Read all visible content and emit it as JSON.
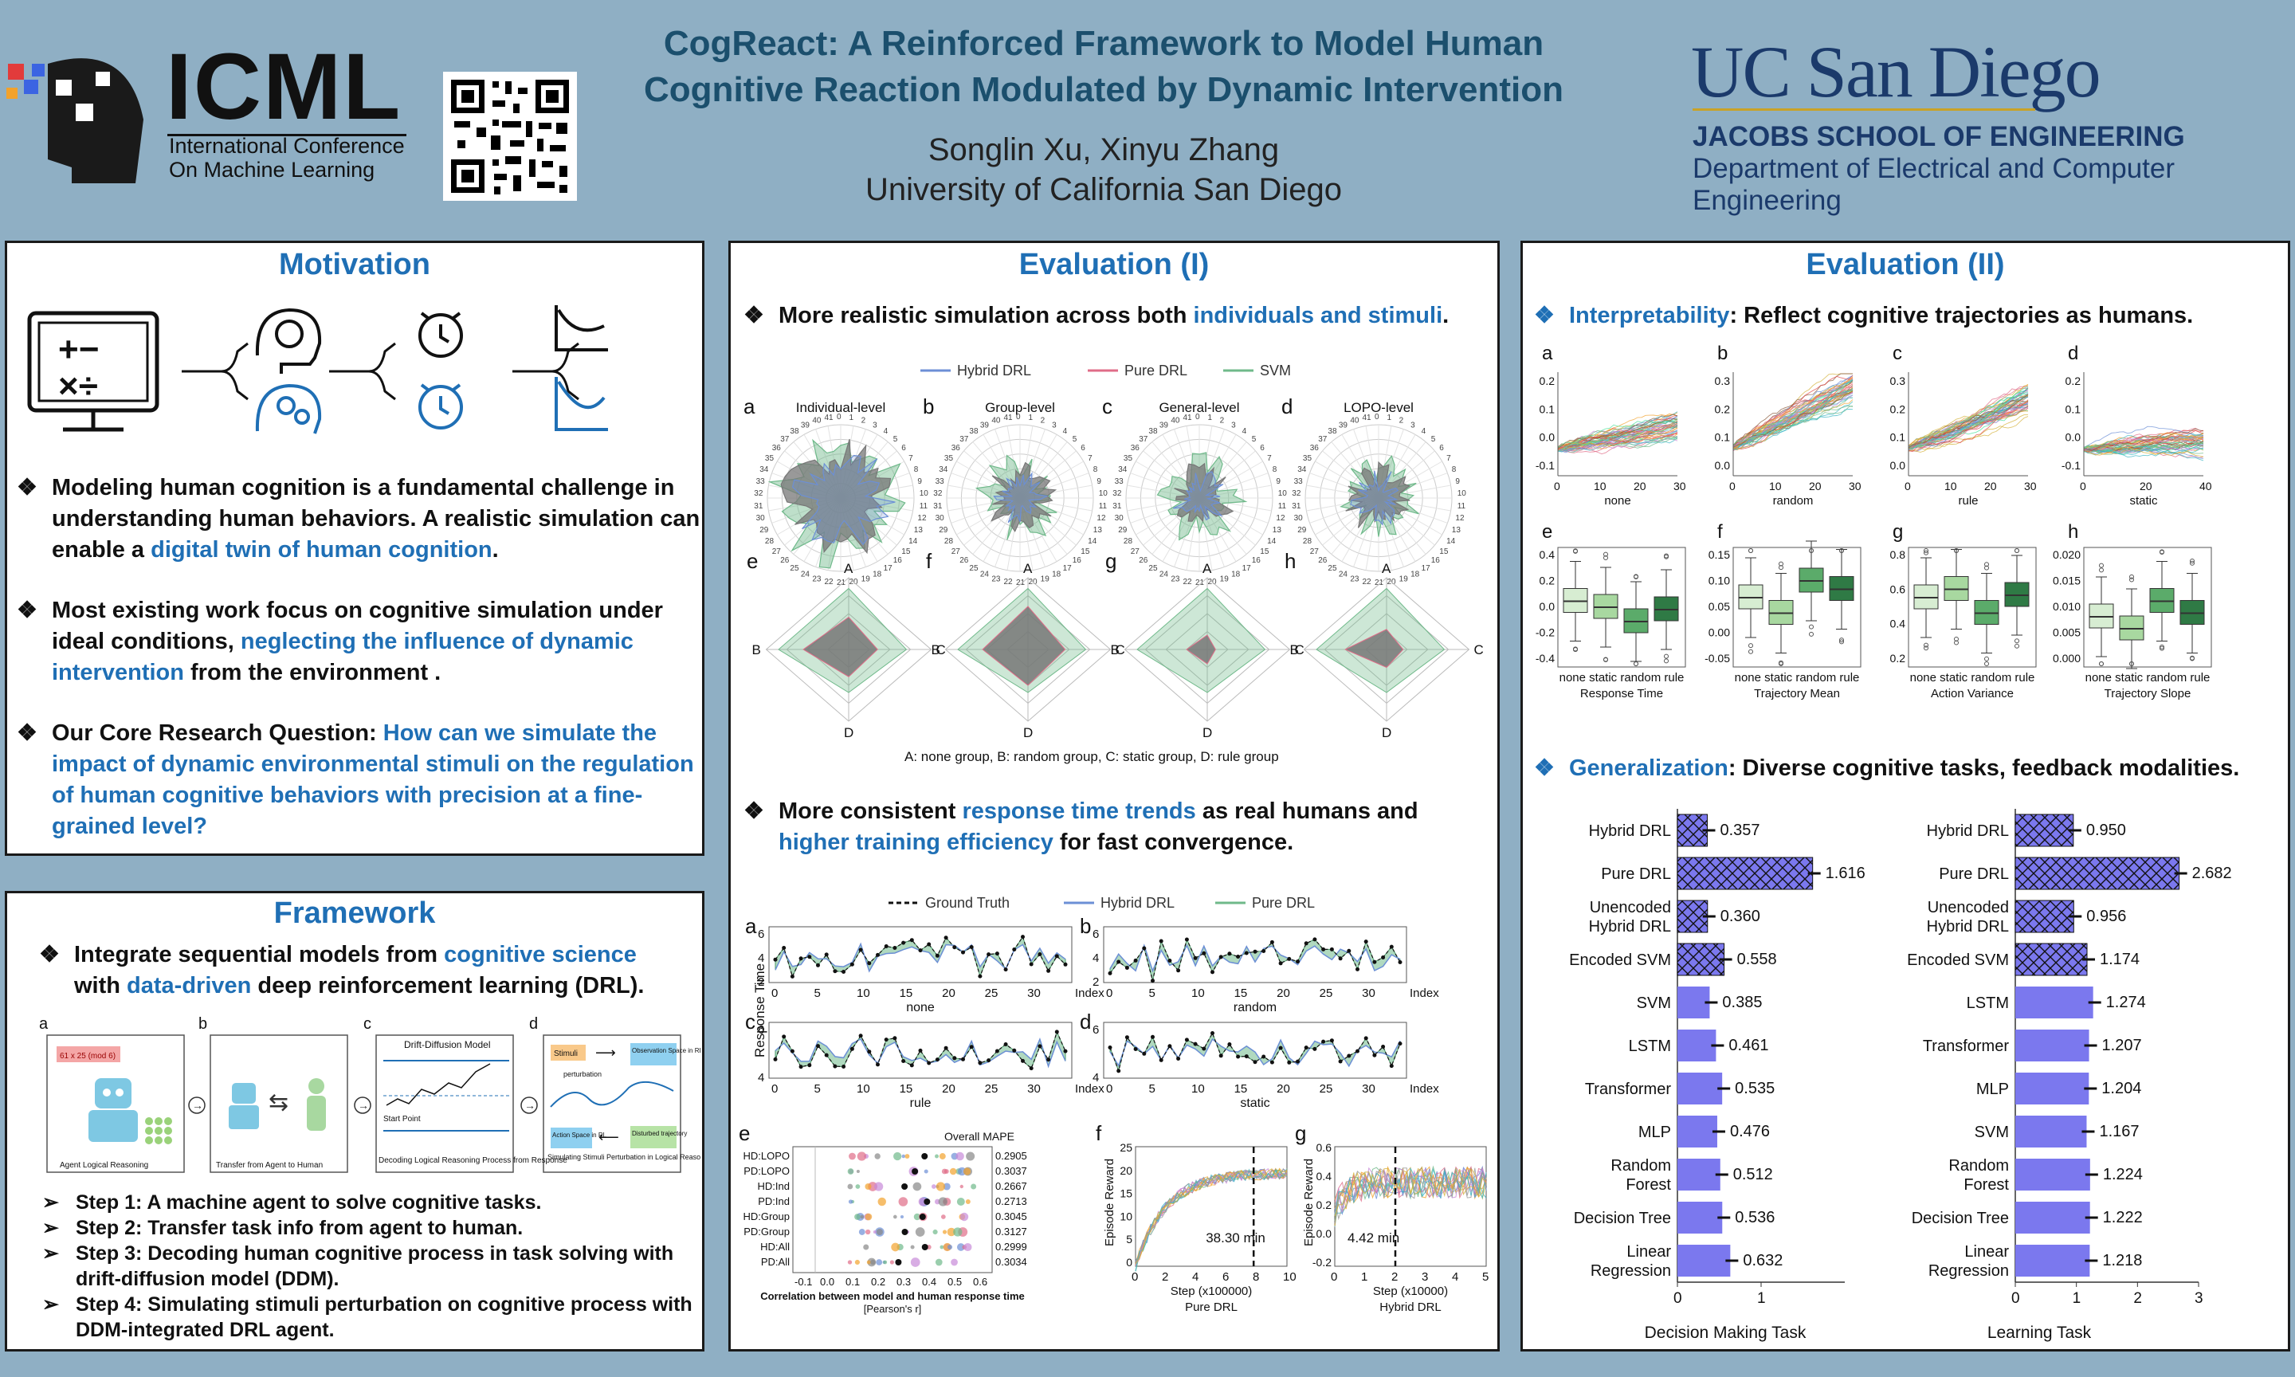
{
  "header": {
    "icml_logo": "ICML",
    "icml_sub1": "International Conference",
    "icml_sub2": "On Machine Learning",
    "title_line1": "CogReact: A Reinforced Framework to Model Human",
    "title_line2": "Cognitive Reaction Modulated by Dynamic Intervention",
    "authors": "Songlin Xu, Xinyu Zhang",
    "affiliation": "University of California San Diego",
    "ucsd_logo": "UC San Diego",
    "school": "JACOBS SCHOOL OF ENGINEERING",
    "department": "Department of Electrical and Computer Engineering"
  },
  "motivation": {
    "title": "Motivation",
    "b1_a": "Modeling human cognition is a fundamental challenge in understanding human behaviors. A realistic simulation can enable a ",
    "b1_hl": "digital twin of human cognition",
    "b1_c": ".",
    "b2_a": "Most existing work focus on cognitive simulation under ideal conditions, ",
    "b2_hl": "neglecting the influence of dynamic intervention",
    "b2_c": " from the environment .",
    "b3_a": "Our Core Research Question: ",
    "b3_hl": "How can we simulate the impact of dynamic environmental stimuli on the regulation of human cognitive behaviors with precision at a fine-grained level?"
  },
  "framework": {
    "title": "Framework",
    "intro_a": "Integrate sequential models from ",
    "intro_hl1": "cognitive science",
    "intro_b": "with ",
    "intro_hl2": "data-driven",
    "intro_c": " deep reinforcement learning (DRL).",
    "panel_labels": [
      "a",
      "b",
      "c",
      "d"
    ],
    "panel_caps": [
      "Agent Logical Reasoning",
      "Transfer from Agent to Human",
      "Decoding Logical Reasoning Process from Response",
      "Simulating Stimuli Perturbation in Logical Reasoning Process"
    ],
    "ddm_title": "Drift-Diffusion Model",
    "equation": "61 x 25 (mod 6)",
    "start_point": "Start Point",
    "stimuli": "Stimuli",
    "obs_space": "Observation Space in RL",
    "action_space": "Action Space in RL",
    "disturbed": "Disturbed trajectory",
    "perturbation": "perturbation",
    "steps": [
      "Step 1: A machine agent to solve cognitive tasks.",
      "Step 2: Transfer task info from agent to human.",
      "Step 3: Decoding human cognitive process in task solving with drift-diffusion model (DDM).",
      "Step 4: Simulating stimuli perturbation on cognitive process with DDM-integrated DRL agent."
    ]
  },
  "eval1": {
    "title": "Evaluation (I)",
    "h1_a": "More realistic simulation across both ",
    "h1_hl": "individuals and stimuli",
    "h1_c": ".",
    "legend": [
      "Hybrid DRL",
      "Pure DRL",
      "SVM"
    ],
    "radar_titles": [
      "Individual-level",
      "Group-level",
      "General-level",
      "LOPO-level"
    ],
    "radar_letters": [
      "a",
      "b",
      "c",
      "d"
    ],
    "diamond_letters": [
      "e",
      "f",
      "g",
      "h"
    ],
    "axis_caption": "A: none group, B: random group, C: static group, D: rule group",
    "h2_a": "More consistent ",
    "h2_hl1": "response time trends",
    "h2_b": " as real humans and",
    "h2_hl2": "higher training efficiency",
    "h2_c": " for fast convergence.",
    "legend2": [
      "Ground Truth",
      "Hybrid DRL",
      "Pure DRL"
    ],
    "rt_panels": [
      "none",
      "random",
      "rule",
      "static"
    ],
    "rt_ylabel": "Response Time",
    "index_label": "Index",
    "mape_title": "Overall MAPE",
    "mape_rows": [
      {
        "name": "HD:LOPO",
        "val": "0.2905"
      },
      {
        "name": "PD:LOPO",
        "val": "0.3037"
      },
      {
        "name": "HD:Ind",
        "val": "0.2667"
      },
      {
        "name": "PD:Ind",
        "val": "0.2713"
      },
      {
        "name": "HD:Group",
        "val": "0.3045"
      },
      {
        "name": "PD:Group",
        "val": "0.3127"
      },
      {
        "name": "HD:All",
        "val": "0.2999"
      },
      {
        "name": "PD:All",
        "val": "0.3034"
      }
    ],
    "corr_xlabel1": "Correlation between model and human response time",
    "corr_xlabel2": "[Pearson's r]",
    "reward_ylabel": "Episode Reward",
    "pure_time": "38.30 min",
    "pure_xlabel": "Step (x100000)",
    "pure_name": "Pure DRL",
    "hybrid_time": "4.42 min",
    "hybrid_xlabel": "Step (x10000)",
    "hybrid_name": "Hybrid DRL"
  },
  "eval2": {
    "title": "Evaluation (II)",
    "h1_hl": "Interpretability",
    "h1_rest": ": Reflect cognitive trajectories as humans.",
    "traj_letters": [
      "a",
      "b",
      "c",
      "d"
    ],
    "traj_names": [
      "none",
      "random",
      "rule",
      "static"
    ],
    "box_letters": [
      "e",
      "f",
      "g",
      "h"
    ],
    "box_titles": [
      "Response Time",
      "Trajectory Mean",
      "Action Variance",
      "Trajectory Slope"
    ],
    "box_cats": "none static random rule",
    "h2_hl": "Generalization",
    "h2_rest": ": Diverse cognitive tasks, feedback modalities.",
    "bar_models": [
      "Hybrid DRL",
      "Pure DRL",
      "Unencoded Hybrid DRL",
      "Encoded SVM",
      "SVM",
      "LSTM",
      "Transformer",
      "MLP",
      "Random Forest",
      "Decision Tree",
      "Linear Regression"
    ],
    "bar_models_right": [
      "Hybrid DRL",
      "Pure DRL",
      "Unencoded Hybrid DRL",
      "Encoded SVM",
      "LSTM",
      "Transformer",
      "MLP",
      "SVM",
      "Random Forest",
      "Decision Tree",
      "Linear Regression"
    ],
    "decision_title": "Decision Making Task",
    "learning_title": "Learning Task"
  },
  "chart_data": [
    {
      "type": "bar",
      "title": "Decision Making Task",
      "categories": [
        "Hybrid DRL",
        "Pure DRL",
        "Unencoded Hybrid DRL",
        "Encoded SVM",
        "SVM",
        "LSTM",
        "Transformer",
        "MLP",
        "Random Forest",
        "Decision Tree",
        "Linear Regression"
      ],
      "values": [
        0.357,
        1.616,
        0.36,
        0.558,
        0.385,
        0.461,
        0.535,
        0.476,
        0.512,
        0.536,
        0.632
      ],
      "xlim": [
        0,
        2
      ],
      "xticks": [
        "0",
        "1"
      ],
      "orientation": "horizontal"
    },
    {
      "type": "bar",
      "title": "Learning Task",
      "categories": [
        "Hybrid DRL",
        "Pure DRL",
        "Unencoded Hybrid DRL",
        "Encoded SVM",
        "LSTM",
        "Transformer",
        "MLP",
        "SVM",
        "Random Forest",
        "Decision Tree",
        "Linear Regression"
      ],
      "values": [
        0.95,
        2.682,
        0.956,
        1.174,
        1.274,
        1.207,
        1.204,
        1.167,
        1.224,
        1.222,
        1.218
      ],
      "xlim": [
        0,
        3
      ],
      "xticks": [
        "0",
        "1",
        "2",
        "3"
      ],
      "orientation": "horizontal"
    }
  ],
  "colors": {
    "accent": "#1f6fb5",
    "header_bg": "#8fafc4",
    "bar": "#7b78ee",
    "green": "#6fb98a",
    "title": "#1b4f6d"
  }
}
